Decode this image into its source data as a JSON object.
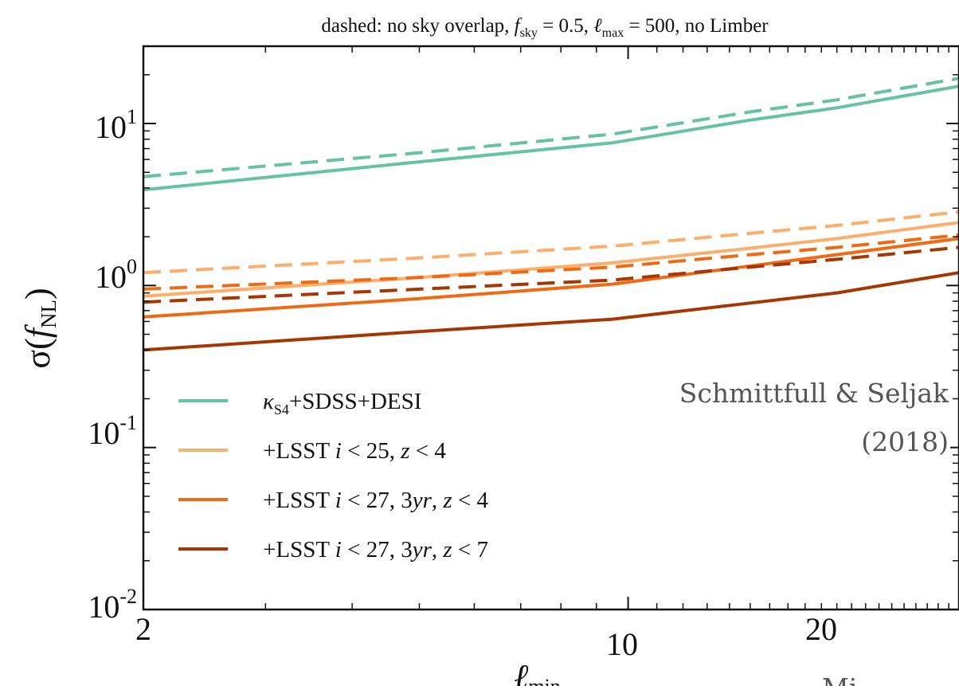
{
  "chart_data": {
    "type": "line",
    "title": "dashed: no sky overlap, f_sky = 0.5, ℓ_max = 500, no Limber",
    "xlabel": "ℓ_min",
    "ylabel": "σ(f_NL)",
    "xscale": "log",
    "yscale": "log",
    "xlim": [
      2,
      30
    ],
    "ylim": [
      0.01,
      30
    ],
    "xticks": [
      2,
      10,
      20
    ],
    "xtick_labels": [
      "2",
      "10",
      "20"
    ],
    "yticks": [
      0.01,
      0.1,
      1,
      10
    ],
    "ytick_labels": [
      {
        "base": "10",
        "exp": "-2"
      },
      {
        "base": "10",
        "exp": "-1"
      },
      {
        "base": "10",
        "exp": "0"
      },
      {
        "base": "10",
        "exp": "1"
      }
    ],
    "legend_position": "lower-left",
    "annotation": {
      "line1": "Schmittfull & Seljak",
      "line2": "(2018)"
    },
    "footer_text": "Mi",
    "series": [
      {
        "name": "κ_S4+SDSS+DESI",
        "color": "#66c2a5",
        "style": "solid",
        "x": [
          2,
          5,
          9.5,
          15,
          20,
          30
        ],
        "y": [
          3.9,
          5.8,
          7.6,
          10.5,
          12.5,
          17.0
        ]
      },
      {
        "name": "+LSST i < 25, z < 4",
        "color": "#fdae6b",
        "style": "solid",
        "x": [
          2,
          5,
          9.5,
          15,
          20,
          30
        ],
        "y": [
          0.86,
          1.12,
          1.38,
          1.7,
          1.95,
          2.45
        ]
      },
      {
        "name": "+LSST i < 27, 3yr, z < 4",
        "color": "#f16913",
        "style": "solid",
        "x": [
          2,
          5,
          9.5,
          15,
          20,
          30
        ],
        "y": [
          0.64,
          0.83,
          1.02,
          1.32,
          1.55,
          1.95
        ]
      },
      {
        "name": "+LSST i < 27, 3yr, z < 7",
        "color": "#a63603",
        "style": "solid",
        "x": [
          2,
          5,
          9.5,
          15,
          20,
          30
        ],
        "y": [
          0.4,
          0.52,
          0.62,
          0.78,
          0.9,
          1.2
        ]
      },
      {
        "color": "#66c2a5",
        "style": "dashed",
        "x": [
          2,
          5,
          9.5,
          15,
          20,
          30
        ],
        "y": [
          4.7,
          6.6,
          8.6,
          11.8,
          14.0,
          19.0
        ]
      },
      {
        "color": "#fdae6b",
        "style": "dashed",
        "x": [
          2,
          5,
          9.5,
          15,
          20,
          30
        ],
        "y": [
          1.2,
          1.48,
          1.75,
          2.1,
          2.35,
          2.85
        ]
      },
      {
        "color": "#f16913",
        "style": "dashed",
        "x": [
          2,
          5,
          9.5,
          15,
          20,
          30
        ],
        "y": [
          0.95,
          1.12,
          1.3,
          1.55,
          1.72,
          2.05
        ]
      },
      {
        "color": "#a63603",
        "style": "dashed",
        "x": [
          2,
          5,
          9.5,
          15,
          20,
          30
        ],
        "y": [
          0.79,
          0.95,
          1.08,
          1.3,
          1.45,
          1.72
        ]
      }
    ]
  }
}
